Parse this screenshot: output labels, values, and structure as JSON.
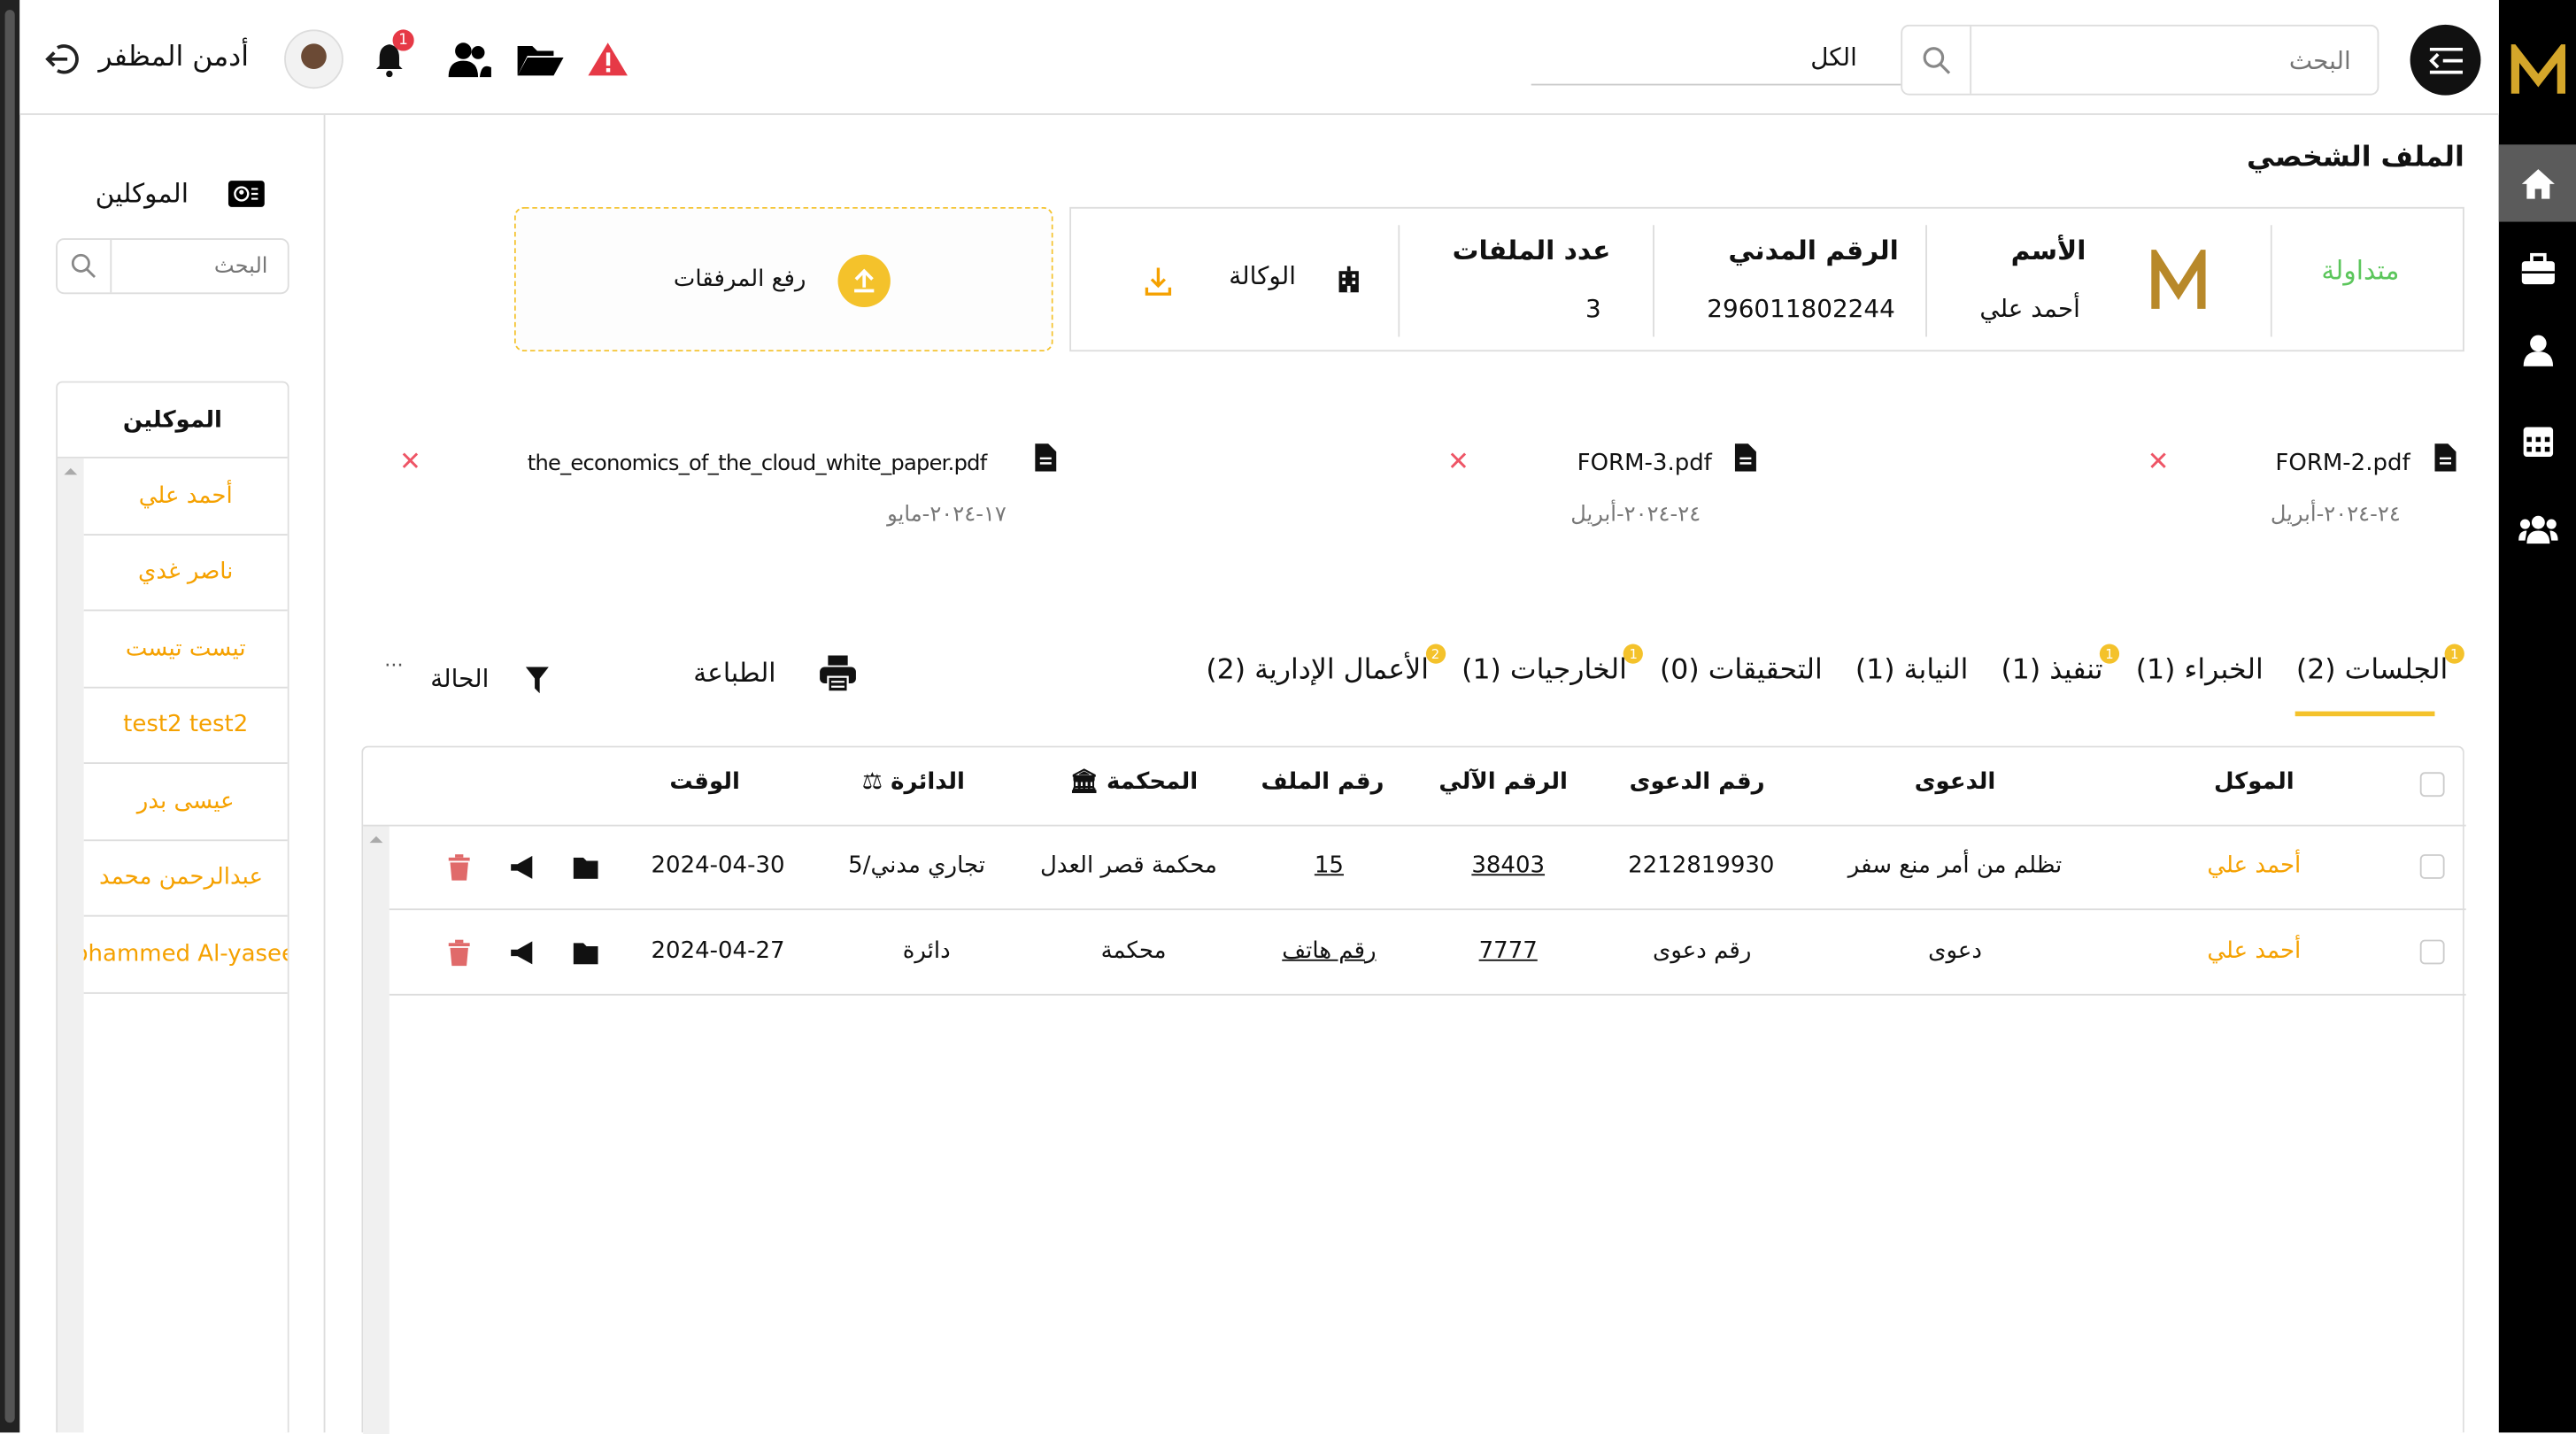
{
  "header": {
    "user_name": "أدمن المظفر",
    "notification_count": "1",
    "search_placeholder": "البحث",
    "filter_value": "الكل",
    "icons": [
      "logout-icon",
      "avatar",
      "bell-icon",
      "users-icon",
      "folder-open-icon",
      "warning-icon",
      "search-icon",
      "menu-icon"
    ]
  },
  "colors": {
    "accent": "#f5a100",
    "badge": "#e63946",
    "status": "#5cc65c",
    "gold": "#b8892a"
  },
  "right_nav": {
    "icons": [
      "logo-m",
      "home-icon",
      "briefcase-icon",
      "user-icon",
      "calendar-icon",
      "group-icon"
    ],
    "active": "home-icon"
  },
  "clients_panel": {
    "title": "الموكلين",
    "search_placeholder": "البحث",
    "list_header": "الموكلين",
    "items": [
      "أحمد علي",
      "ناصر غدي",
      "تيست تيست",
      "test2 test2",
      "عيسى بدر",
      "عبدالرحمن محمد",
      "Mohammed Al-yaseen"
    ]
  },
  "profile": {
    "title": "الملف الشخصي",
    "status": "متداولة",
    "name_label": "الأسم",
    "name_value": "أحمد علي",
    "civil_id_label": "الرقم المدني",
    "civil_id_value": "296011802244",
    "files_count_label": "عدد الملفات",
    "files_count_value": "3",
    "agency_label": "الوكالة",
    "upload_label": "رفع المرفقات"
  },
  "attachments": [
    {
      "name": "FORM-2.pdf",
      "date": "٢٤-٢٠٢٤-أبريل"
    },
    {
      "name": "FORM-3.pdf",
      "date": "٢٤-٢٠٢٤-أبريل"
    },
    {
      "name": "the_economics_of_the_cloud_white_paper.pdf",
      "date": "١٧-٢٠٢٤-مايو"
    }
  ],
  "tabs": [
    {
      "label": "الجلسات (2)",
      "badge": "1",
      "active": true
    },
    {
      "label": "الخبراء (1)"
    },
    {
      "label": "تنفيذ (1)",
      "badge": "1"
    },
    {
      "label": "النيابة (1)"
    },
    {
      "label": "التحقيقات (0)"
    },
    {
      "label": "الخارجيات (1)",
      "badge": "1"
    },
    {
      "label": "الأعمال الإدارية (2)",
      "badge": "2"
    }
  ],
  "toolbar": {
    "print_label": "الطباعة",
    "status_label": "الحالة",
    "more": "···"
  },
  "table": {
    "columns": [
      "الموكل",
      "الدعوى",
      "رقم الدعوى",
      "الرقم الآلي",
      "رقم الملف",
      "المحكمة",
      "الدائرة",
      "الوقت"
    ],
    "rows": [
      [
        "أحمد علي",
        "تظلم من أمر منع سفر",
        "2212819930",
        "38403",
        "15",
        "محكمة قصر العدل",
        "تجاري مدني/5",
        "2024-04-30"
      ],
      [
        "أحمد علي",
        "دعوى",
        "رقم دعوى",
        "7777",
        "رقم هاتف",
        "محكمة",
        "دائرة",
        "2024-04-27"
      ]
    ]
  }
}
